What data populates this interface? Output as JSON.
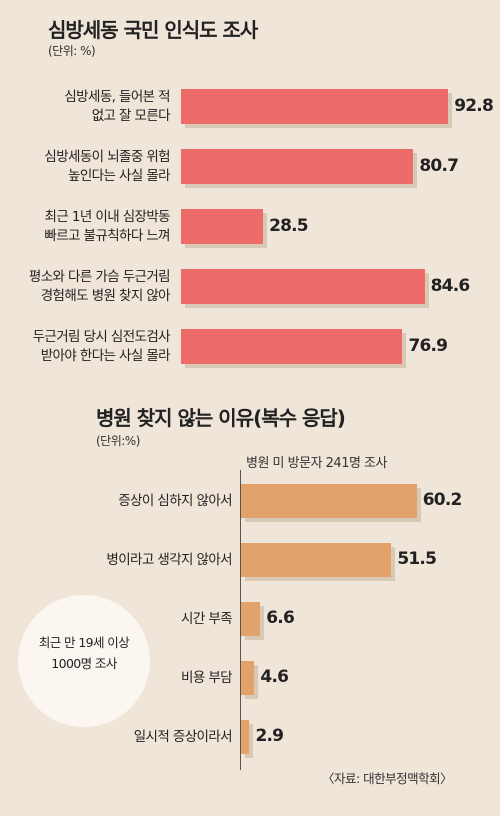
{
  "chart_data": [
    {
      "type": "bar",
      "orientation": "horizontal",
      "title": "심방세동 국민 인식도 조사",
      "unit_label": "(단위: %)",
      "categories": [
        "심방세동, 들어본 적\n없고 잘 모른다",
        "심방세동이 뇌졸중 위험\n높인다는 사실 몰라",
        "최근 1년 이내 심장박동\n빠르고 불규칙하다 느껴",
        "평소와 다른 가슴 두근거림\n경험해도 병원 찾지 않아",
        "두근거림 당시 심전도검사\n받아야 한다는 사실 몰라"
      ],
      "values": [
        92.8,
        80.7,
        28.5,
        84.6,
        76.9
      ],
      "value_labels": [
        "92.8",
        "80.7",
        "28.5",
        "84.6",
        "76.9"
      ],
      "color": "#ed6b68"
    },
    {
      "type": "bar",
      "orientation": "horizontal",
      "title": "병원 찾지 않는 이유(복수 응답)",
      "unit_label": "(단위:%)",
      "subtitle": "병원 미 방문자 241명 조사",
      "categories": [
        "증상이 심하지 않아서",
        "병이라고 생각지 않아서",
        "시간 부족",
        "비용 부담",
        "일시적 증상이라서"
      ],
      "values": [
        60.2,
        51.5,
        6.6,
        4.6,
        2.9
      ],
      "value_labels": [
        "60.2",
        "51.5",
        "6.6",
        "4.6",
        "2.9"
      ],
      "color": "#e3a26a"
    }
  ],
  "note_circle": "최근 만 19세 이상\n1000명 조사",
  "source": "〈자료: 대한부정맥학회〉"
}
